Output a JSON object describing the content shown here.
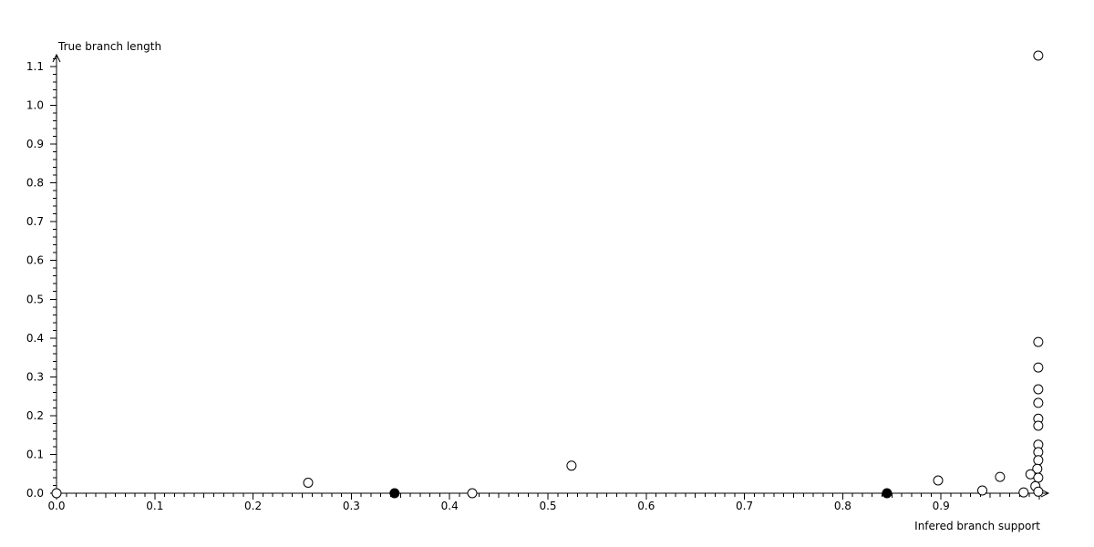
{
  "chart_data": {
    "type": "scatter",
    "title": "",
    "xlabel": "Infered branch support",
    "ylabel": "True branch length",
    "grid": false,
    "legend": "none",
    "x_axis": {
      "min": 0.0,
      "max": 1.0,
      "major_step": 0.1,
      "minor_step": 0.01,
      "tick_labels": [
        "0.0",
        "0.1",
        "0.2",
        "0.3",
        "0.4",
        "0.5",
        "0.6",
        "0.7",
        "0.8",
        "0.9"
      ]
    },
    "y_axis": {
      "min": 0.0,
      "max": 1.12,
      "major_step": 0.1,
      "minor_step": 0.02,
      "tick_labels": [
        "0.0",
        "0.1",
        "0.2",
        "0.3",
        "0.4",
        "0.5",
        "0.6",
        "0.7",
        "0.8",
        "0.9",
        "1.0",
        "1.1"
      ]
    },
    "series": [
      {
        "name": "open-circle-points",
        "marker": "open-circle",
        "points": [
          [
            0.0,
            0.0
          ],
          [
            0.256,
            0.027
          ],
          [
            0.423,
            0.0
          ],
          [
            0.524,
            0.071
          ],
          [
            0.897,
            0.033
          ],
          [
            0.942,
            0.007
          ],
          [
            0.96,
            0.042
          ],
          [
            0.999,
            1.128
          ],
          [
            0.999,
            0.39
          ],
          [
            0.999,
            0.324
          ],
          [
            0.999,
            0.268
          ],
          [
            0.999,
            0.233
          ],
          [
            0.999,
            0.192
          ],
          [
            0.999,
            0.174
          ],
          [
            0.999,
            0.125
          ],
          [
            0.999,
            0.106
          ],
          [
            0.999,
            0.085
          ],
          [
            0.998,
            0.063
          ],
          [
            0.991,
            0.049
          ],
          [
            0.999,
            0.04
          ],
          [
            0.996,
            0.018
          ],
          [
            0.984,
            0.002
          ],
          [
            0.999,
            0.004
          ]
        ]
      },
      {
        "name": "filled-circle-points",
        "marker": "filled-circle",
        "points": [
          [
            0.344,
            0.0
          ],
          [
            0.845,
            0.0
          ]
        ]
      }
    ],
    "colors": {
      "background": "#ffffff",
      "axis": "#000000",
      "marker_stroke": "#000000",
      "open_marker_fill": "#ffffff",
      "filled_marker_fill": "#000000"
    }
  }
}
